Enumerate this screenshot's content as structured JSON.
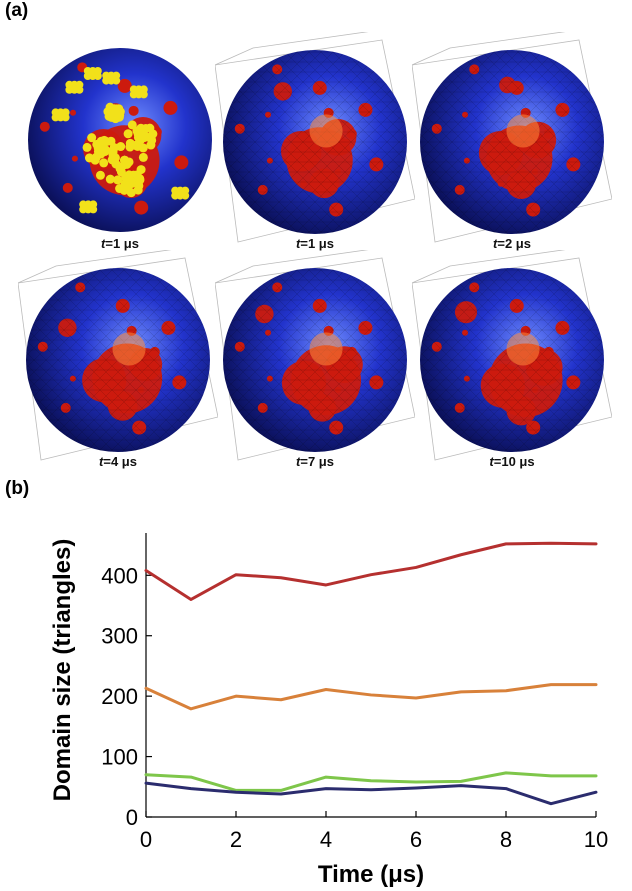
{
  "figure": {
    "panel_a_label": "(a)",
    "panel_b_label": "(b)"
  },
  "panel_a": {
    "frames": [
      {
        "t_var": "t",
        "t_value": "=1 μs",
        "style": "coarse-grained"
      },
      {
        "t_var": "t",
        "t_value": "=1 μs",
        "style": "triangulated"
      },
      {
        "t_var": "t",
        "t_value": "=2 μs",
        "style": "triangulated"
      },
      {
        "t_var": "t",
        "t_value": "=4 μs",
        "style": "triangulated"
      },
      {
        "t_var": "t",
        "t_value": "=7 μs",
        "style": "triangulated"
      },
      {
        "t_var": "t",
        "t_value": "=10 μs",
        "style": "triangulated"
      }
    ],
    "colors": {
      "sphere": "#2233cc",
      "domain": "#cc1a0e",
      "particles": "#f2e11a",
      "box": "#bbbbbb"
    }
  },
  "chart_data": {
    "type": "line",
    "title": "",
    "xlabel": "Time (μs)",
    "ylabel": "Domain size (triangles)",
    "xlim": [
      0,
      10
    ],
    "ylim": [
      0,
      470
    ],
    "xticks": [
      0,
      2,
      4,
      6,
      8,
      10
    ],
    "yticks": [
      0,
      100,
      200,
      300,
      400
    ],
    "x": [
      0,
      1,
      2,
      3,
      4,
      5,
      6,
      7,
      8,
      9,
      10
    ],
    "series": [
      {
        "color": "#b5302f",
        "values": [
          408,
          360,
          401,
          396,
          384,
          401,
          413,
          434,
          452,
          453,
          452
        ]
      },
      {
        "color": "#d8813a",
        "values": [
          213,
          179,
          200,
          194,
          211,
          202,
          197,
          207,
          209,
          219,
          219
        ]
      },
      {
        "color": "#7ec64a",
        "values": [
          70,
          66,
          44,
          44,
          66,
          60,
          58,
          59,
          73,
          68,
          68
        ]
      },
      {
        "color": "#2b2c6e",
        "values": [
          56,
          47,
          41,
          38,
          47,
          45,
          48,
          52,
          47,
          22,
          41
        ]
      }
    ]
  }
}
